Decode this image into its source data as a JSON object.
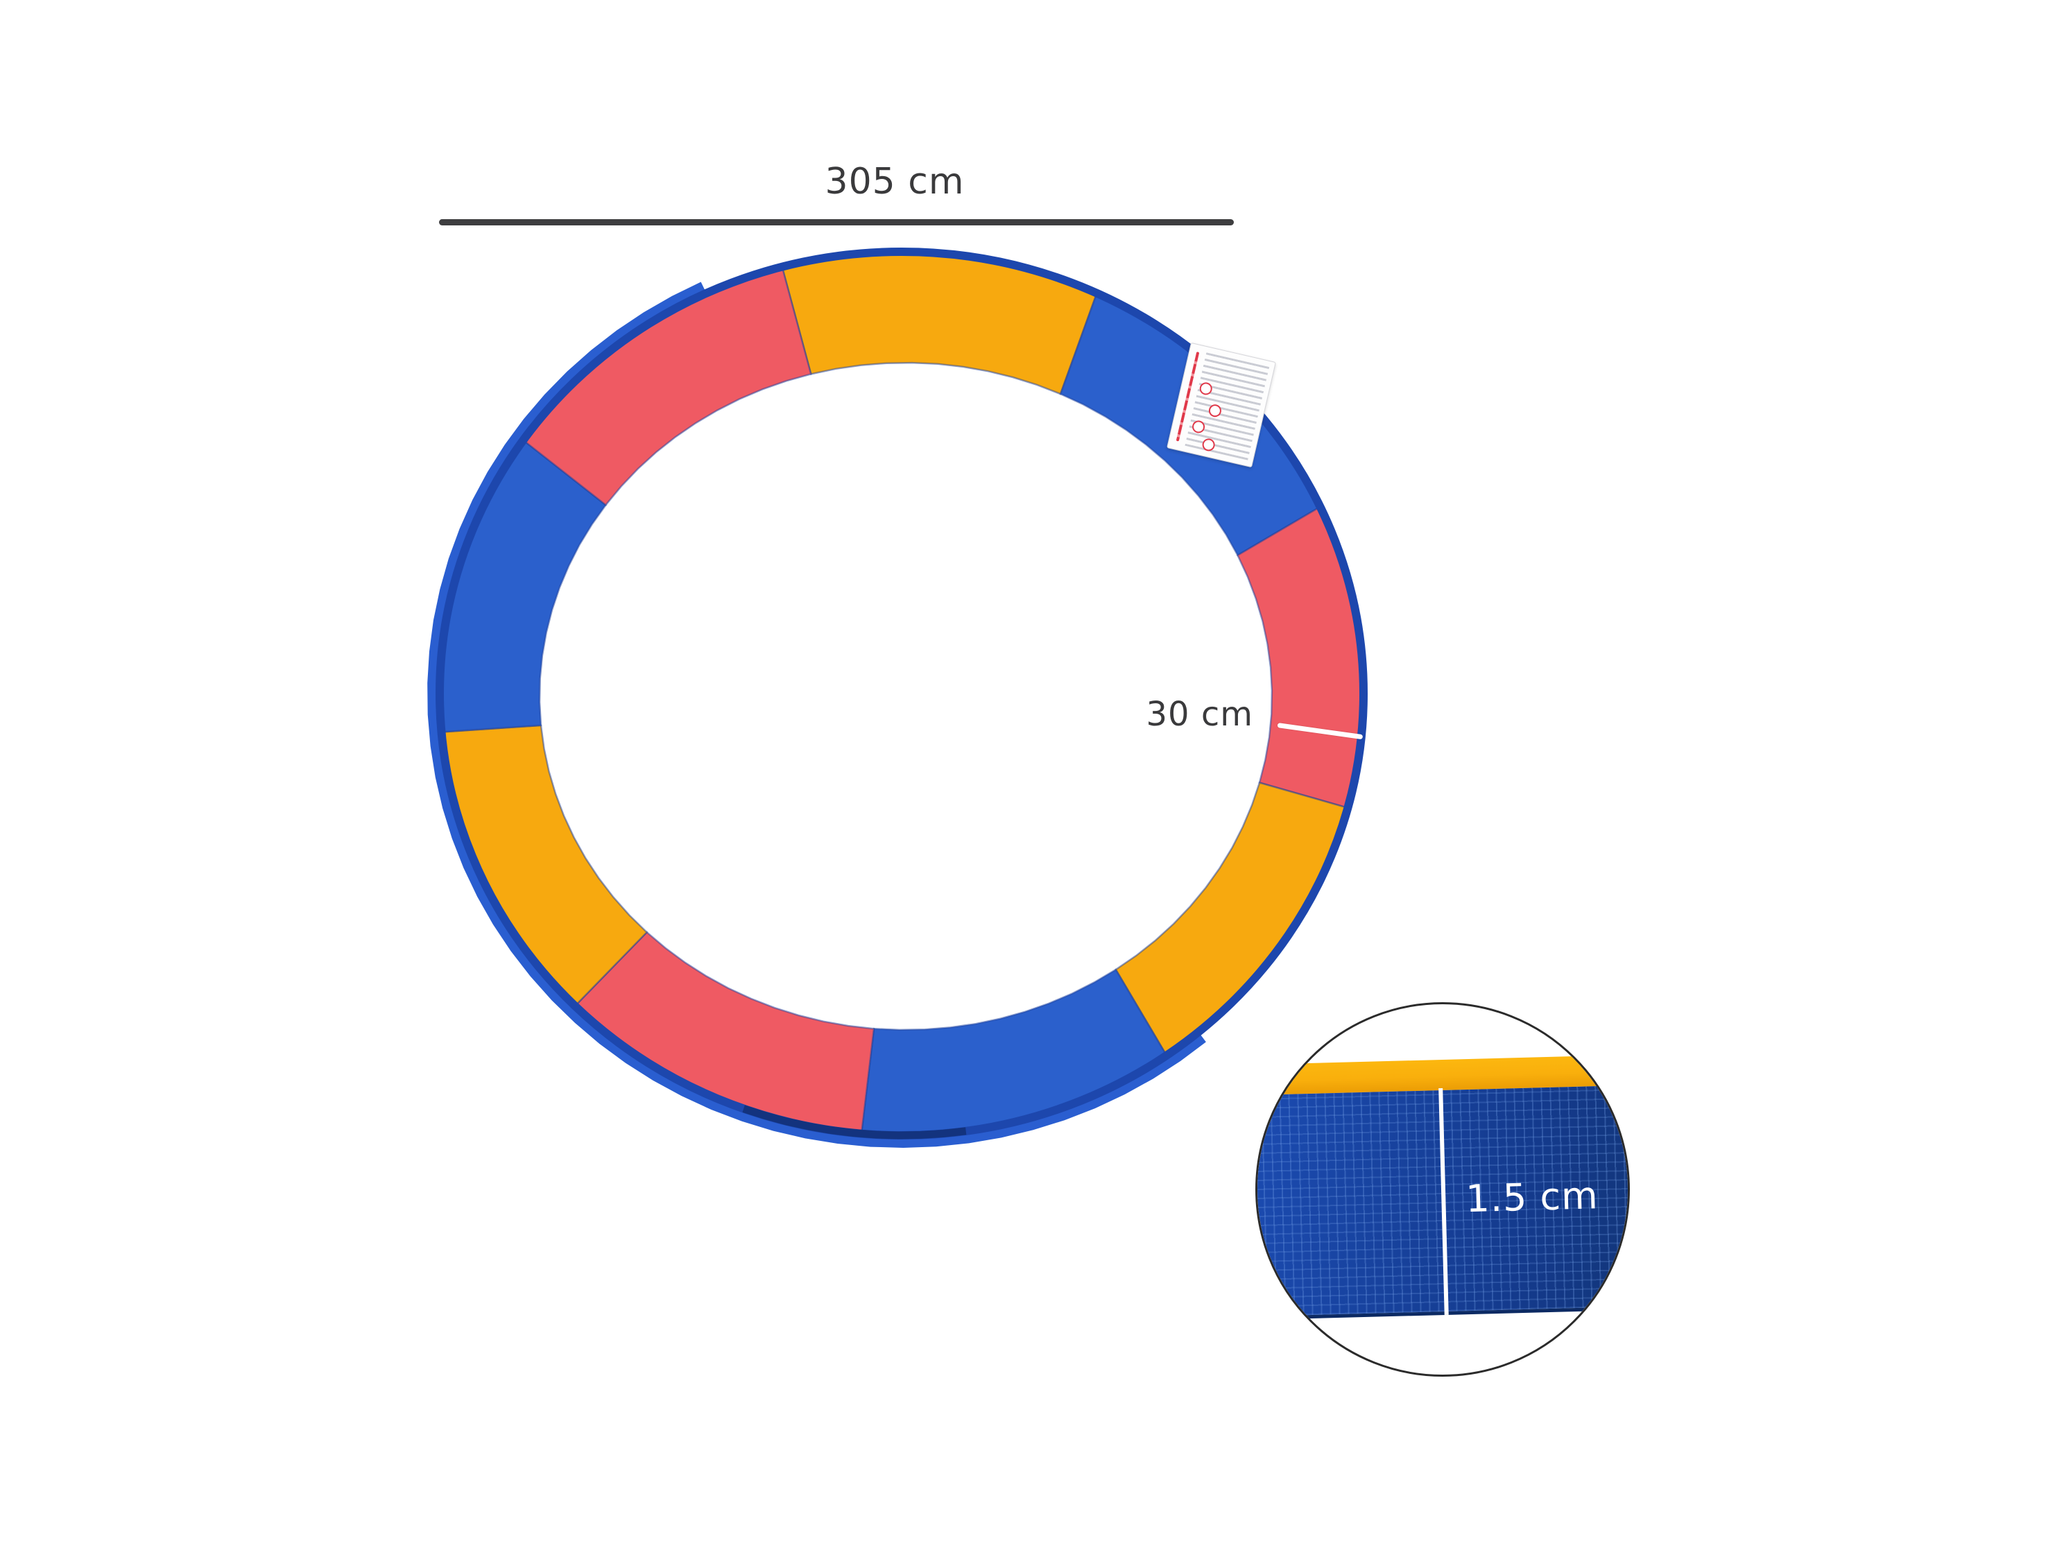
{
  "scene": {
    "background": "#FFFFFF"
  },
  "dimensions": {
    "diameter_label": "305 cm",
    "pad_width_label": "30 cm",
    "thickness_label": "1.5 cm"
  },
  "ring": {
    "segment_sequence": [
      "yellow",
      "blue",
      "red",
      "yellow",
      "blue",
      "red",
      "yellow",
      "blue",
      "red"
    ]
  },
  "colors": {
    "ring_yellow": "#F7A90F",
    "ring_blue": "#2B60CC",
    "ring_red": "#EF5A63",
    "trim_blue": "#1D47AD",
    "skirt_blue": "#2A5ED0",
    "seam_blue": "#1E3F9B",
    "shadow_navy": "#0B2257",
    "inset_yellow": "#F9AF0C",
    "inset_blue": "#1C4CB3",
    "inset_blue_dark": "#143A8C",
    "stitch_navy": "#0A2355",
    "dim_line": "#3E3E40",
    "dim_text": "#3A3A3C",
    "measure_white": "#FFFFFF",
    "circle_border": "#2B2B2B",
    "label_red": "#E0394A",
    "label_text_gray": "#B9BCC6"
  }
}
